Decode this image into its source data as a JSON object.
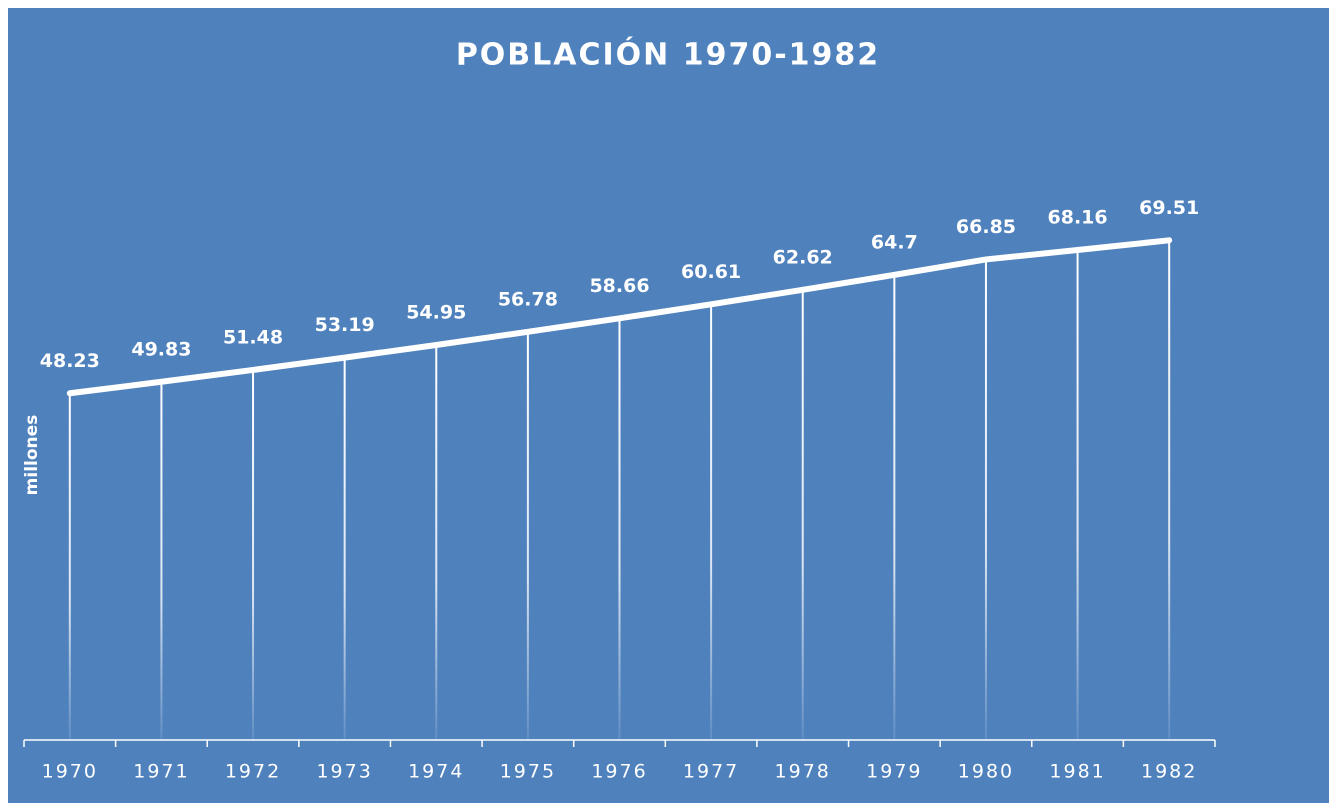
{
  "chart_data": {
    "type": "line",
    "title": "POBLACIÓN 1970-1982",
    "y_label": "millones",
    "categories": [
      "1970",
      "1971",
      "1972",
      "1973",
      "1974",
      "1975",
      "1976",
      "1977",
      "1978",
      "1979",
      "1980",
      "1981",
      "1982"
    ],
    "values": [
      48.23,
      49.83,
      51.48,
      53.19,
      54.95,
      56.78,
      58.66,
      60.61,
      62.62,
      64.7,
      66.85,
      68.16,
      69.51
    ],
    "color": "#ffffff",
    "ylim": [
      0,
      90
    ],
    "drop_lines": true
  }
}
